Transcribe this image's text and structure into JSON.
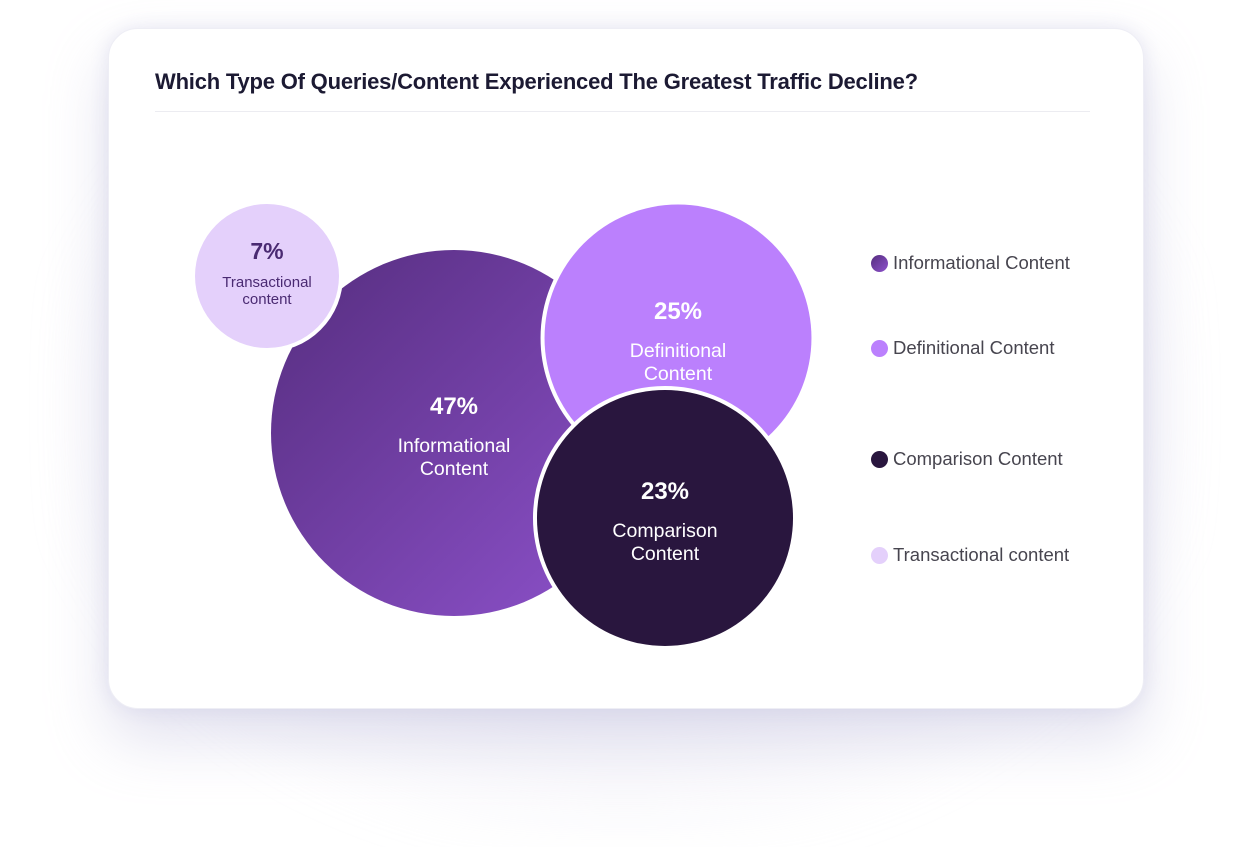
{
  "title": "Which Type Of Queries/Content Experienced The Greatest Traffic Decline?",
  "chart_data": {
    "type": "bubble",
    "title": "Which Type Of Queries/Content Experienced The Greatest Traffic Decline?",
    "unit": "%",
    "legend_position": "right",
    "series": [
      {
        "name": "Informational Content",
        "value": 47,
        "value_label": "47%",
        "label_lines": [
          "Informational",
          "Content"
        ],
        "color": "#6a3a9e",
        "gradient": [
          "#5a3183",
          "#8a4fc8"
        ],
        "text_color": "#ffffff"
      },
      {
        "name": "Definitional Content",
        "value": 25,
        "value_label": "25%",
        "label_lines": [
          "Definitional",
          "Content"
        ],
        "color": "#bb80fd",
        "text_color": "#ffffff"
      },
      {
        "name": "Comparison Content",
        "value": 23,
        "value_label": "23%",
        "label_lines": [
          "Comparison",
          "Content"
        ],
        "color": "#29163e",
        "text_color": "#ffffff"
      },
      {
        "name": "Transactional content",
        "value": 7,
        "value_label": "7%",
        "label_lines": [
          "Transactional",
          "content"
        ],
        "color": "#e4d0fb",
        "text_color": "#4a2a72"
      }
    ]
  },
  "legend": [
    {
      "label": "Informational Content",
      "color": "#6a3a9e"
    },
    {
      "label": "Definitional Content",
      "color": "#bb80fd"
    },
    {
      "label": "Comparison Content",
      "color": "#29163e"
    },
    {
      "label": "Transactional content",
      "color": "#e4d0fb"
    }
  ]
}
